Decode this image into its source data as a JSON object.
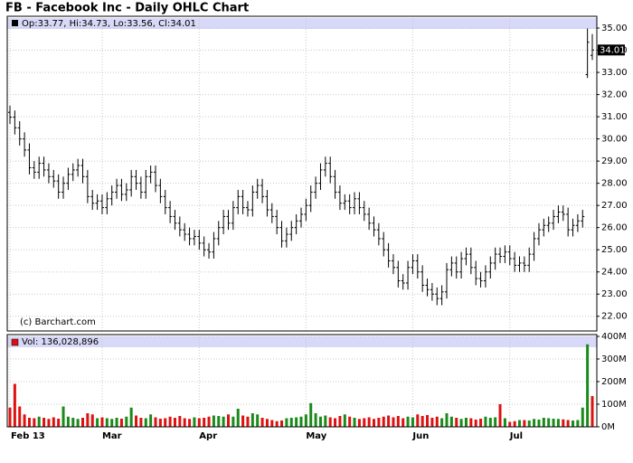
{
  "chart_data": {
    "type": "ohlc",
    "title": "FB - Facebook Inc - Daily OHLC Chart",
    "price_header": "Op:33.77, Hi:34.73, Lo:33.56, Cl:34.01",
    "volume_header": "Vol: 136,028,896",
    "watermark": "(c) Barchart.com",
    "bar_color": "#000000",
    "up_color": "#1a8a1a",
    "down_color": "#dd1111",
    "header_color": "#d8d8f8",
    "grid": true,
    "categories": [
      "Feb 13",
      null,
      null,
      null,
      null,
      null,
      null,
      null,
      null,
      null,
      null,
      null,
      null,
      null,
      null,
      null,
      null,
      null,
      null,
      "Mar",
      null,
      null,
      null,
      null,
      null,
      null,
      null,
      null,
      null,
      null,
      null,
      null,
      null,
      null,
      null,
      null,
      null,
      null,
      null,
      "Apr",
      null,
      null,
      null,
      null,
      null,
      null,
      null,
      null,
      null,
      null,
      null,
      null,
      null,
      null,
      null,
      null,
      null,
      null,
      null,
      null,
      null,
      "May",
      null,
      null,
      null,
      null,
      null,
      null,
      null,
      null,
      null,
      null,
      null,
      null,
      null,
      null,
      null,
      null,
      null,
      null,
      null,
      null,
      null,
      "Jun",
      null,
      null,
      null,
      null,
      null,
      null,
      null,
      null,
      null,
      null,
      null,
      null,
      null,
      null,
      null,
      null,
      null,
      null,
      null,
      "Jul",
      null,
      null,
      null,
      null,
      null,
      null,
      null,
      null,
      null,
      null,
      null,
      null,
      null,
      null,
      null,
      null,
      null
    ],
    "open": [
      31.2,
      30.98,
      30.5,
      30.0,
      29.5,
      28.7,
      28.5,
      28.9,
      28.6,
      28.3,
      28.1,
      27.6,
      28.0,
      28.4,
      28.6,
      28.8,
      28.3,
      27.4,
      27.1,
      27.2,
      26.9,
      27.3,
      27.6,
      27.9,
      27.5,
      27.7,
      28.3,
      28.0,
      27.6,
      28.3,
      28.5,
      27.9,
      27.4,
      26.9,
      26.5,
      26.2,
      25.9,
      25.7,
      25.5,
      25.6,
      25.3,
      25.0,
      24.9,
      25.5,
      26.0,
      26.5,
      26.2,
      26.9,
      27.4,
      26.9,
      26.8,
      27.6,
      27.9,
      27.4,
      26.8,
      26.5,
      26.0,
      25.4,
      25.7,
      26.0,
      26.3,
      26.6,
      27.0,
      27.6,
      28.0,
      28.6,
      28.9,
      28.3,
      27.6,
      27.1,
      27.2,
      26.9,
      27.3,
      26.9,
      26.6,
      26.2,
      25.9,
      25.5,
      25.0,
      24.5,
      24.2,
      23.6,
      23.5,
      24.2,
      24.5,
      24.0,
      23.4,
      23.2,
      23.0,
      22.8,
      23.1,
      24.1,
      24.4,
      24.0,
      24.6,
      24.8,
      24.2,
      23.7,
      23.6,
      24.0,
      24.4,
      24.8,
      24.7,
      24.9,
      24.6,
      24.3,
      24.4,
      24.3,
      24.8,
      25.5,
      25.9,
      26.1,
      26.2,
      26.5,
      26.7,
      26.6,
      25.9,
      26.1,
      26.3,
      32.9,
      33.77
    ],
    "high": [
      31.5,
      31.28,
      30.8,
      30.3,
      29.8,
      29.0,
      29.2,
      29.2,
      28.9,
      28.6,
      28.4,
      28.3,
      28.7,
      28.9,
      29.1,
      29.1,
      28.6,
      27.7,
      27.5,
      27.5,
      27.6,
      27.9,
      28.2,
      28.2,
      28.0,
      28.6,
      28.6,
      28.3,
      28.6,
      28.8,
      28.8,
      28.2,
      27.7,
      27.2,
      26.8,
      26.5,
      26.2,
      26.0,
      25.9,
      25.9,
      25.6,
      25.3,
      25.8,
      26.3,
      26.8,
      26.8,
      27.2,
      27.7,
      27.7,
      27.2,
      27.9,
      28.2,
      28.2,
      27.7,
      27.1,
      26.8,
      26.3,
      26.0,
      26.3,
      26.6,
      26.9,
      27.3,
      27.9,
      28.3,
      28.9,
      29.2,
      29.2,
      28.6,
      27.9,
      27.5,
      27.5,
      27.6,
      27.6,
      27.2,
      26.9,
      26.5,
      26.2,
      25.8,
      25.3,
      24.8,
      24.5,
      23.9,
      24.5,
      24.8,
      24.8,
      24.3,
      23.7,
      23.5,
      23.3,
      23.4,
      24.4,
      24.7,
      24.7,
      24.9,
      25.1,
      25.1,
      24.5,
      24.0,
      24.3,
      24.7,
      25.1,
      25.1,
      25.2,
      25.2,
      24.9,
      24.7,
      24.7,
      25.1,
      25.8,
      26.2,
      26.4,
      26.5,
      26.8,
      27.0,
      27.0,
      26.9,
      26.4,
      26.6,
      26.8,
      34.98,
      34.73
    ],
    "low": [
      30.68,
      30.2,
      29.7,
      29.2,
      28.4,
      28.2,
      28.2,
      28.3,
      28.0,
      27.8,
      27.3,
      27.3,
      27.7,
      28.1,
      28.3,
      28.0,
      27.1,
      26.8,
      26.8,
      26.6,
      26.6,
      27.0,
      27.3,
      27.2,
      27.2,
      27.4,
      27.7,
      27.3,
      27.3,
      28.0,
      27.6,
      27.1,
      26.6,
      26.2,
      25.9,
      25.6,
      25.4,
      25.2,
      25.2,
      25.0,
      24.7,
      24.6,
      24.6,
      25.2,
      25.7,
      25.9,
      25.9,
      26.6,
      26.6,
      26.5,
      26.5,
      27.3,
      27.1,
      26.5,
      26.2,
      25.7,
      25.1,
      25.1,
      25.4,
      25.7,
      26.0,
      26.3,
      26.7,
      27.3,
      27.7,
      28.3,
      28.0,
      27.3,
      26.8,
      26.8,
      26.6,
      26.6,
      26.6,
      26.3,
      25.9,
      25.6,
      25.2,
      24.7,
      24.2,
      23.9,
      23.3,
      23.2,
      23.2,
      23.9,
      23.7,
      23.1,
      22.9,
      22.7,
      22.5,
      22.5,
      22.8,
      23.8,
      23.7,
      23.7,
      24.3,
      23.9,
      23.4,
      23.3,
      23.3,
      23.7,
      24.1,
      24.4,
      24.4,
      24.3,
      24.0,
      24.0,
      24.0,
      24.0,
      24.5,
      25.2,
      25.6,
      25.8,
      25.9,
      26.2,
      26.3,
      25.6,
      25.6,
      25.8,
      26.0,
      32.75,
      33.56
    ],
    "close": [
      30.98,
      30.5,
      30.0,
      29.5,
      28.7,
      28.5,
      28.9,
      28.6,
      28.3,
      28.1,
      27.6,
      28.0,
      28.4,
      28.6,
      28.8,
      28.3,
      27.4,
      27.1,
      27.2,
      26.9,
      27.3,
      27.6,
      27.9,
      27.5,
      27.7,
      28.3,
      28.0,
      27.6,
      28.3,
      28.5,
      27.9,
      27.4,
      26.9,
      26.5,
      26.2,
      25.9,
      25.7,
      25.5,
      25.6,
      25.3,
      25.0,
      24.9,
      25.5,
      26.0,
      26.5,
      26.2,
      26.9,
      27.4,
      26.9,
      26.8,
      27.6,
      27.9,
      27.4,
      26.8,
      26.5,
      26.0,
      25.4,
      25.7,
      26.0,
      26.3,
      26.6,
      27.0,
      27.6,
      28.0,
      28.6,
      28.9,
      28.3,
      27.6,
      27.1,
      27.2,
      26.9,
      27.3,
      26.9,
      26.6,
      26.2,
      25.9,
      25.5,
      25.0,
      24.5,
      24.2,
      23.6,
      23.5,
      24.2,
      24.5,
      24.0,
      23.4,
      23.2,
      23.0,
      22.8,
      23.1,
      24.1,
      24.4,
      24.0,
      24.6,
      24.8,
      24.2,
      23.7,
      23.6,
      24.0,
      24.4,
      24.8,
      24.7,
      24.9,
      24.6,
      24.3,
      24.4,
      24.3,
      24.8,
      25.5,
      25.9,
      26.1,
      26.2,
      26.5,
      26.7,
      26.6,
      25.9,
      26.1,
      26.3,
      26.5,
      34.36,
      34.01
    ],
    "volume": [
      85,
      190,
      90,
      55,
      40,
      38,
      45,
      40,
      35,
      42,
      36,
      90,
      45,
      40,
      35,
      40,
      60,
      55,
      38,
      42,
      38,
      35,
      40,
      36,
      45,
      85,
      50,
      40,
      38,
      55,
      42,
      36,
      38,
      45,
      40,
      48,
      38,
      35,
      42,
      38,
      40,
      45,
      50,
      48,
      45,
      55,
      45,
      80,
      50,
      45,
      60,
      55,
      40,
      35,
      30,
      25,
      28,
      38,
      40,
      42,
      45,
      55,
      105,
      60,
      45,
      50,
      42,
      38,
      48,
      55,
      45,
      40,
      35,
      38,
      42,
      35,
      40,
      45,
      50,
      42,
      48,
      38,
      45,
      42,
      55,
      48,
      52,
      40,
      45,
      38,
      60,
      45,
      40,
      35,
      40,
      38,
      32,
      36,
      45,
      40,
      42,
      100,
      38,
      22,
      25,
      30,
      30,
      28,
      35,
      32,
      40,
      38,
      36,
      35,
      33,
      30,
      28,
      30,
      85,
      365,
      136.03
    ],
    "ylim": [
      21.5,
      35.45
    ],
    "yticks": [
      {
        "value": 22,
        "label": "22.00"
      },
      {
        "value": 23,
        "label": "23.00"
      },
      {
        "value": 24,
        "label": "24.00"
      },
      {
        "value": 25,
        "label": "25.00"
      },
      {
        "value": 26,
        "label": "26.00"
      },
      {
        "value": 27,
        "label": "27.00"
      },
      {
        "value": 28,
        "label": "28.00"
      },
      {
        "value": 29,
        "label": "29.00"
      },
      {
        "value": 30,
        "label": "30.00"
      },
      {
        "value": 31,
        "label": "31.00"
      },
      {
        "value": 32,
        "label": "32.00"
      },
      {
        "value": 33,
        "label": "33.00"
      },
      {
        "value": 34,
        "label": "34.00"
      },
      {
        "value": 35,
        "label": "35.00"
      }
    ],
    "y2lim": [
      0,
      400
    ],
    "y2ticks": [
      {
        "value": 0,
        "label": "0M"
      },
      {
        "value": 100,
        "label": "100M"
      },
      {
        "value": 200,
        "label": "200M"
      },
      {
        "value": 300,
        "label": "300M"
      },
      {
        "value": 400,
        "label": "400M"
      }
    ]
  }
}
